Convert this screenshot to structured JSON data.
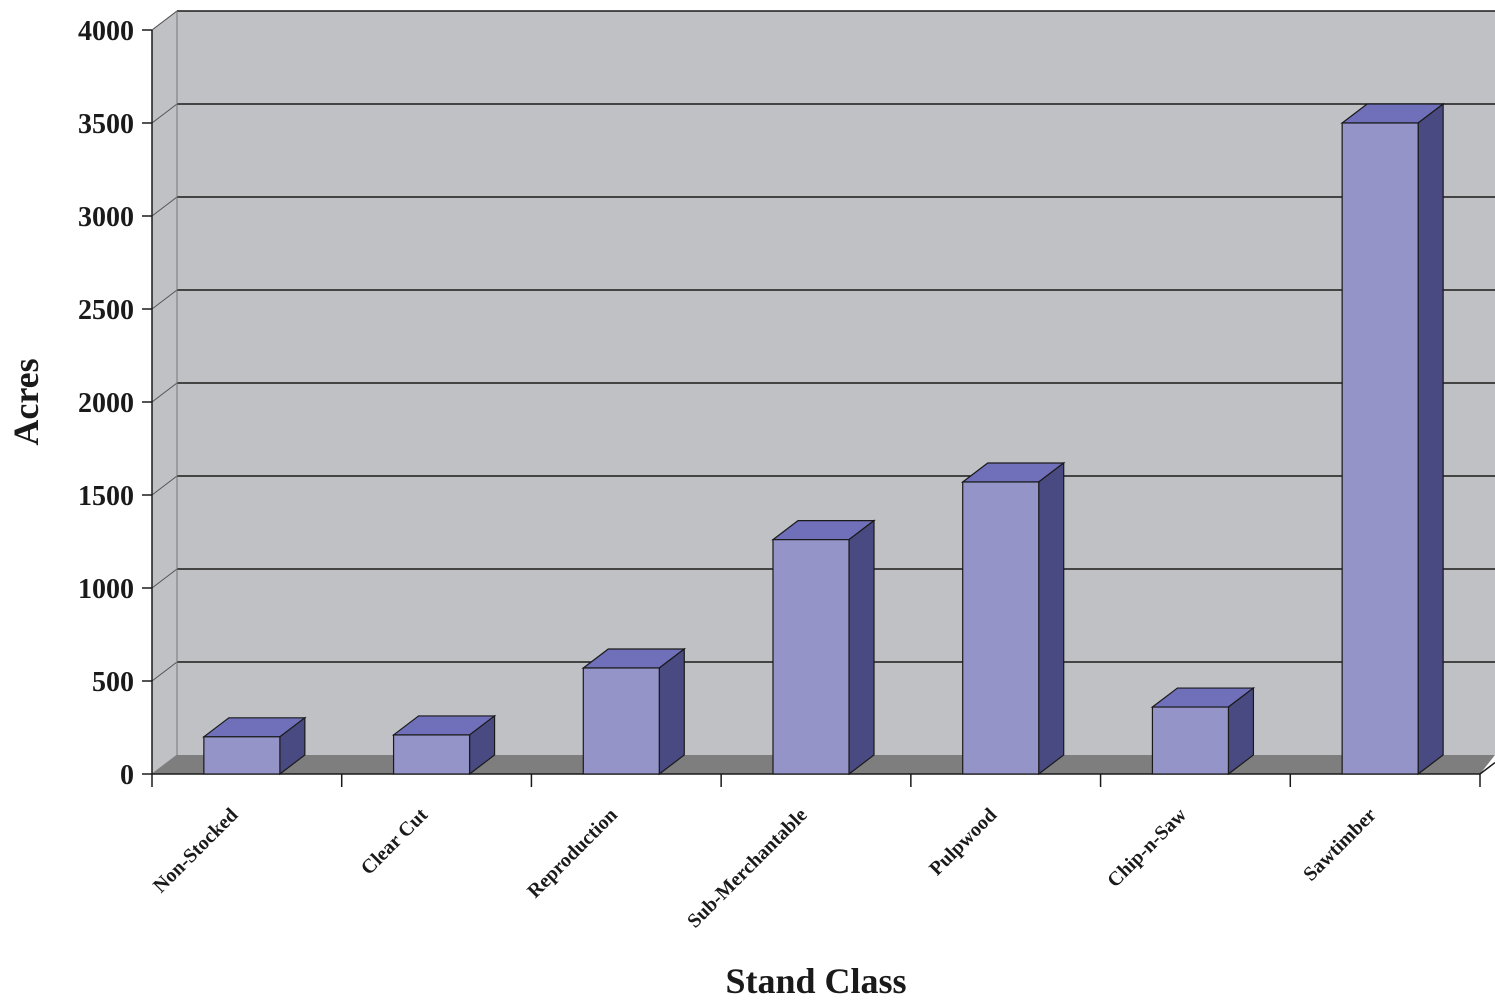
{
  "chart_data": {
    "type": "bar",
    "style": "3d-column",
    "title": "",
    "xlabel": "Stand Class",
    "ylabel": "Acres",
    "categories": [
      "Non-Stocked",
      "Clear Cut",
      "Reproduction",
      "Sub-Merchantable",
      "Pulpwood",
      "Chip-n-Saw",
      "Sawtimber"
    ],
    "values": [
      200,
      210,
      570,
      1260,
      1570,
      360,
      3500
    ],
    "ylim": [
      0,
      4000
    ],
    "yticks": [
      "0",
      "500",
      "1000",
      "1500",
      "2000",
      "2500",
      "3000",
      "3500",
      "4000"
    ],
    "grid": true,
    "legend": "none",
    "colors": {
      "wall": "#c0c1c5",
      "floor": "#7e7e7e",
      "bar_front": "#9494c8",
      "bar_top": "#6f6fba",
      "bar_side": "#4a4a82",
      "gridline": "#1a1a1a"
    }
  }
}
